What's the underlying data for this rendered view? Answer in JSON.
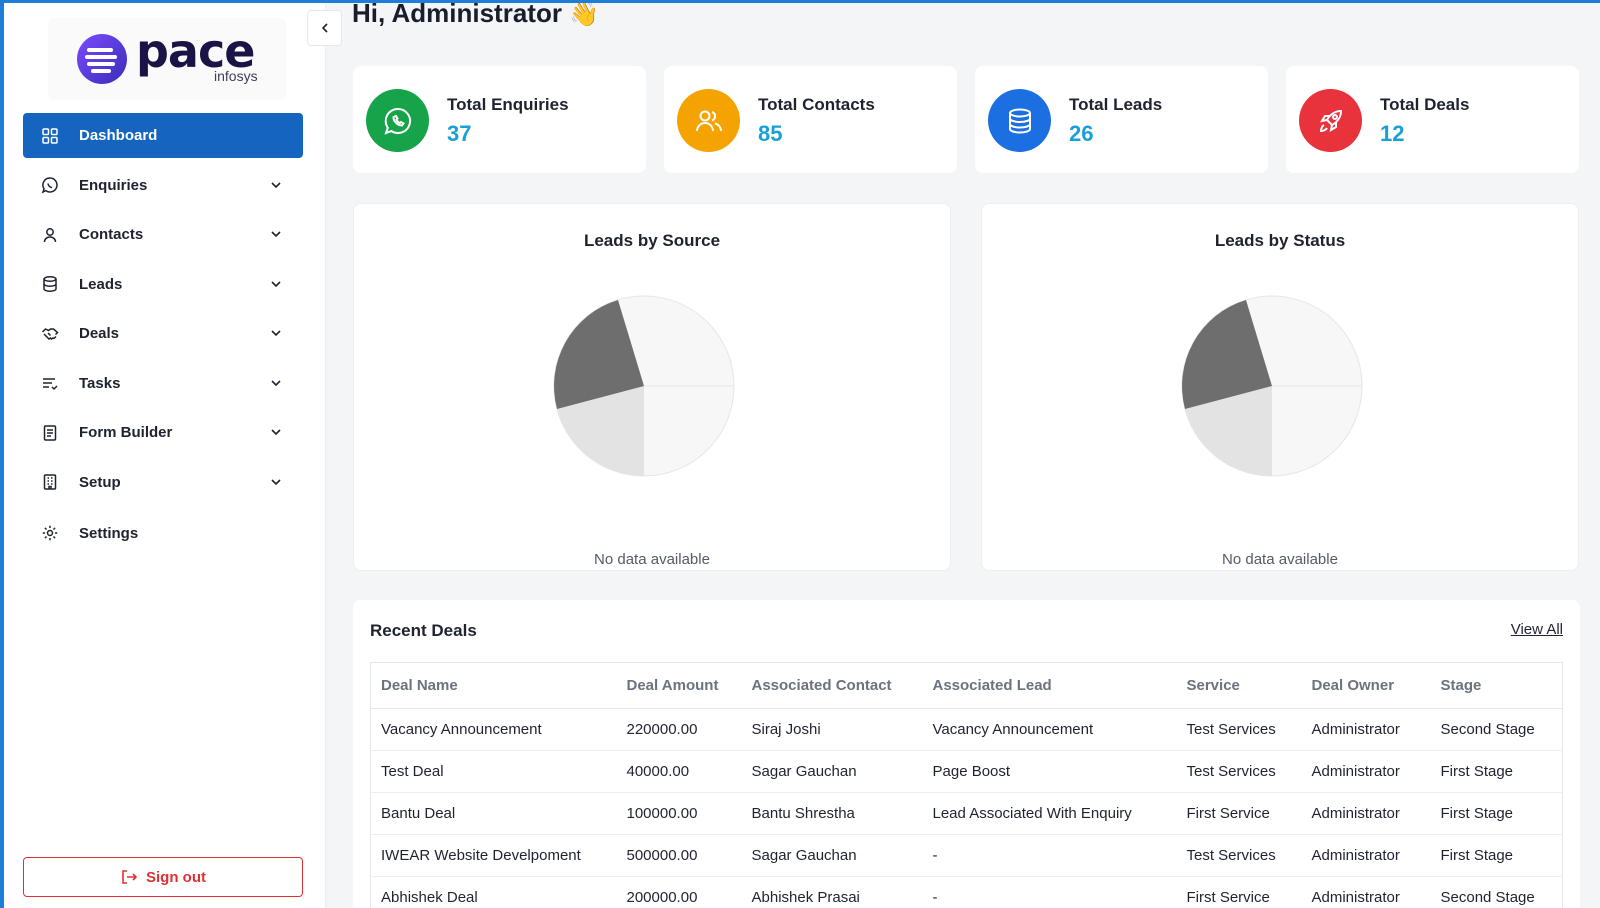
{
  "brand": {
    "name": "pace",
    "tagline": "infosys",
    "accent": "#5b3fd6"
  },
  "sidebar": {
    "items": [
      {
        "label": "Dashboard",
        "icon": "grid-icon",
        "active": true
      },
      {
        "label": "Enquiries",
        "icon": "chat-icon"
      },
      {
        "label": "Contacts",
        "icon": "user-icon"
      },
      {
        "label": "Leads",
        "icon": "database-icon"
      },
      {
        "label": "Deals",
        "icon": "handshake-icon"
      },
      {
        "label": "Tasks",
        "icon": "list-icon"
      },
      {
        "label": "Form Builder",
        "icon": "form-icon"
      },
      {
        "label": "Setup",
        "icon": "building-icon"
      },
      {
        "label": "Settings",
        "icon": "gear-icon"
      }
    ],
    "signout_label": "Sign out",
    "active_color": "#1464c0"
  },
  "header": {
    "greeting": "Hi, Administrator",
    "emoji": "👋"
  },
  "stats": [
    {
      "label": "Total Enquiries",
      "value": "37",
      "icon": "whatsapp-icon",
      "color": "#16a34a"
    },
    {
      "label": "Total Contacts",
      "value": "85",
      "icon": "users-icon",
      "color": "#f5a300"
    },
    {
      "label": "Total Leads",
      "value": "26",
      "icon": "database-icon",
      "color": "#1c6fe0"
    },
    {
      "label": "Total Deals",
      "value": "12",
      "icon": "rocket-icon",
      "color": "#e8323c"
    }
  ],
  "charts": [
    {
      "title": "Leads by Source",
      "empty_text": "No data available"
    },
    {
      "title": "Leads by Status",
      "empty_text": "No data available"
    }
  ],
  "deals": {
    "title": "Recent Deals",
    "view_all": "View All",
    "columns": [
      "Deal Name",
      "Deal Amount",
      "Associated Contact",
      "Associated Lead",
      "Service",
      "Deal Owner",
      "Stage"
    ],
    "rows": [
      [
        "Vacancy Announcement",
        "220000.00",
        "Siraj Joshi",
        "Vacancy Announcement",
        "Test Services",
        "Administrator",
        "Second Stage"
      ],
      [
        "Test Deal",
        "40000.00",
        "Sagar Gauchan",
        "Page Boost",
        "Test Services",
        "Administrator",
        "First Stage"
      ],
      [
        "Bantu Deal",
        "100000.00",
        "Bantu Shrestha",
        "Lead Associated With Enquiry",
        "First Service",
        "Administrator",
        "First Stage"
      ],
      [
        "IWEAR Website Develpoment",
        "500000.00",
        "Sagar Gauchan",
        "-",
        "Test Services",
        "Administrator",
        "First Stage"
      ],
      [
        "Abhishek Deal",
        "200000.00",
        "Abhishek Prasai",
        "-",
        "First Service",
        "Administrator",
        "Second Stage"
      ]
    ]
  }
}
